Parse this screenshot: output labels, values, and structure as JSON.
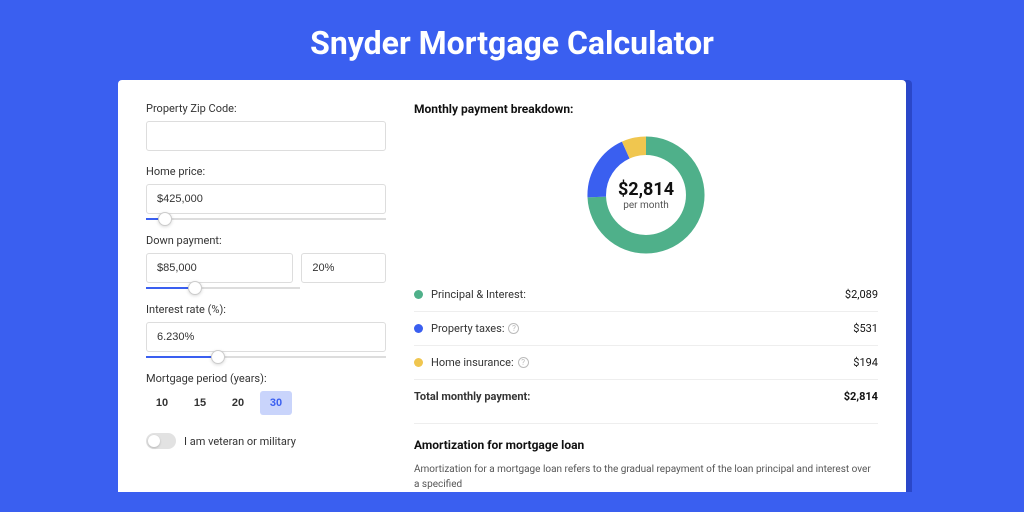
{
  "page": {
    "title": "Snyder Mortgage Calculator",
    "background_color": "#3a5ff0",
    "card_shadow_color": "#2a47c9",
    "card_background": "#ffffff"
  },
  "form": {
    "zip": {
      "label": "Property Zip Code:",
      "value": ""
    },
    "home_price": {
      "label": "Home price:",
      "value": "$425,000",
      "slider_percent": 8
    },
    "down_payment": {
      "label": "Down payment:",
      "value": "$85,000",
      "percent_value": "20%",
      "slider_percent": 20
    },
    "interest_rate": {
      "label": "Interest rate (%):",
      "value": "6.230%",
      "slider_percent": 30
    },
    "mortgage_period": {
      "label": "Mortgage period (years):",
      "options": [
        "10",
        "15",
        "20",
        "30"
      ],
      "active_index": 3
    },
    "veteran": {
      "label": "I am veteran or military",
      "enabled": false
    }
  },
  "breakdown": {
    "title": "Monthly payment breakdown:",
    "donut": {
      "center_amount": "$2,814",
      "center_sub": "per month",
      "thickness": 16,
      "segments": [
        {
          "name": "principal_interest",
          "value": 2089,
          "percent": 74.2,
          "color": "#4fb08a"
        },
        {
          "name": "property_taxes",
          "value": 531,
          "percent": 18.9,
          "color": "#3a5ff0"
        },
        {
          "name": "home_insurance",
          "value": 194,
          "percent": 6.9,
          "color": "#f0c64f"
        }
      ]
    },
    "rows": [
      {
        "dot_color": "#4fb08a",
        "label": "Principal & Interest:",
        "value": "$2,089",
        "help": false
      },
      {
        "dot_color": "#3a5ff0",
        "label": "Property taxes:",
        "value": "$531",
        "help": true
      },
      {
        "dot_color": "#f0c64f",
        "label": "Home insurance:",
        "value": "$194",
        "help": true
      }
    ],
    "total": {
      "label": "Total monthly payment:",
      "value": "$2,814"
    }
  },
  "amortization": {
    "title": "Amortization for mortgage loan",
    "text": "Amortization for a mortgage loan refers to the gradual repayment of the loan principal and interest over a specified"
  },
  "colors": {
    "input_border": "#dddddd",
    "slider_track": "#dddddd",
    "slider_fill": "#3a5ff0",
    "divider": "#eeeeee",
    "text_primary": "#111111",
    "text_secondary": "#555555",
    "period_active_bg": "#c9d4fb",
    "period_active_fg": "#3a5ff0"
  }
}
